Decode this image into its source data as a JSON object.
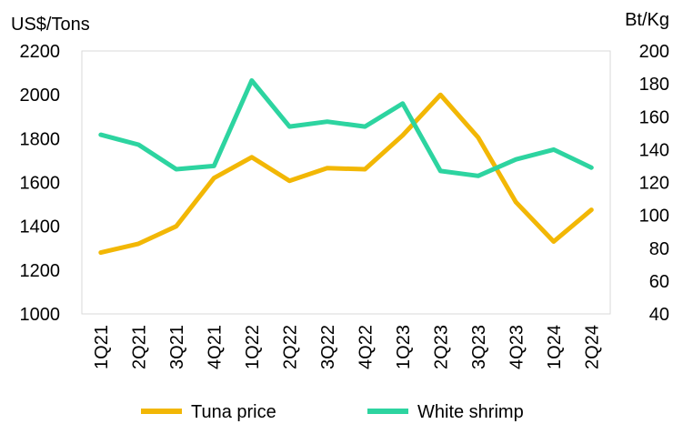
{
  "chart_data": {
    "type": "line",
    "categories": [
      "1Q21",
      "2Q21",
      "3Q21",
      "4Q21",
      "1Q22",
      "2Q22",
      "3Q22",
      "4Q22",
      "1Q23",
      "2Q23",
      "3Q23",
      "4Q23",
      "1Q24",
      "2Q24"
    ],
    "left_axis": {
      "label": "US$/Tons",
      "min": 1000,
      "max": 2200,
      "ticks": [
        1000,
        1200,
        1400,
        1600,
        1800,
        2000,
        2200
      ]
    },
    "right_axis": {
      "label": "Bt/Kg",
      "min": 40,
      "max": 200,
      "ticks": [
        40,
        60,
        80,
        100,
        120,
        140,
        160,
        180,
        200
      ]
    },
    "series": [
      {
        "name": "Tuna price",
        "axis": "left",
        "color": "#f2b705",
        "values": [
          1280,
          1320,
          1400,
          1620,
          1715,
          1607,
          1665,
          1660,
          1815,
          2000,
          1805,
          1510,
          1330,
          1475
        ]
      },
      {
        "name": "White shrimp",
        "axis": "right",
        "color": "#2dd4a0",
        "values": [
          149,
          143,
          128,
          130,
          182,
          154,
          157,
          154,
          168,
          127,
          124,
          134,
          140,
          129
        ]
      }
    ],
    "grid": false,
    "legend_position": "bottom"
  }
}
